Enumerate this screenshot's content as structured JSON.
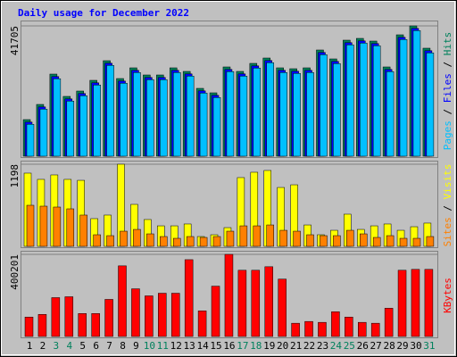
{
  "chart_data": [
    {
      "type": "bar",
      "title": "Daily usage for December 2022",
      "series": [
        {
          "name": "Hits",
          "color": "#00805c",
          "values": [
            11712,
            16568,
            26280,
            19139,
            20853,
            24281,
            30565,
            24852,
            28280,
            25995,
            25995,
            28280,
            27137,
            21710,
            20282,
            28566,
            27137,
            29708,
            31422,
            28280,
            27994,
            28280,
            33993,
            31136,
            37135,
            37706,
            36849,
            28566,
            38849,
            41705,
            34565
          ]
        },
        {
          "name": "Files",
          "color": "#0000ff",
          "values": [
            10912,
            15768,
            25480,
            18339,
            20053,
            23481,
            29765,
            24052,
            27480,
            25195,
            25195,
            27480,
            26337,
            20910,
            19482,
            27766,
            26337,
            28908,
            30622,
            27480,
            27194,
            27480,
            33193,
            30336,
            36335,
            36906,
            36049,
            27766,
            38049,
            40905,
            33765
          ]
        },
        {
          "name": "Pages",
          "color": "#00c0ff",
          "values": [
            10212,
            15068,
            24780,
            17639,
            19353,
            22781,
            29065,
            23352,
            26780,
            24495,
            24495,
            26780,
            25637,
            20210,
            18782,
            27066,
            25637,
            28208,
            29922,
            26780,
            26494,
            26780,
            32493,
            29636,
            35635,
            36206,
            35349,
            27066,
            37349,
            40205,
            33065
          ]
        }
      ],
      "ylim": [
        0,
        41705
      ],
      "yticks": [
        41705
      ]
    },
    {
      "type": "bar",
      "series": [
        {
          "name": "Visits",
          "color": "#ffff00",
          "values": [
            1068,
            977,
            1042,
            977,
            963,
            404,
            456,
            1198,
            612,
            391,
            299,
            299,
            326,
            143,
            169,
            273,
            1003,
            1081,
            1107,
            859,
            898,
            312,
            169,
            234,
            469,
            247,
            299,
            326,
            234,
            286,
            339
          ]
        },
        {
          "name": "Sites",
          "color": "#ff8000",
          "values": [
            599,
            586,
            573,
            547,
            456,
            169,
            156,
            221,
            247,
            182,
            143,
            117,
            143,
            130,
            143,
            221,
            299,
            299,
            312,
            234,
            221,
            169,
            156,
            156,
            234,
            182,
            130,
            156,
            117,
            117,
            143
          ]
        }
      ],
      "ylim": [
        0,
        1198
      ],
      "yticks": [
        1198
      ]
    },
    {
      "type": "bar",
      "categories": [
        "1",
        "2",
        "3",
        "4",
        "5",
        "6",
        "7",
        "8",
        "9",
        "10",
        "11",
        "12",
        "13",
        "14",
        "15",
        "16",
        "17",
        "18",
        "19",
        "20",
        "21",
        "22",
        "23",
        "24",
        "25",
        "26",
        "27",
        "28",
        "29",
        "30",
        "31"
      ],
      "category_colors": [
        "#000000",
        "#000000",
        "#00805c",
        "#00805c",
        "#000000",
        "#000000",
        "#000000",
        "#000000",
        "#000000",
        "#00805c",
        "#00805c",
        "#000000",
        "#000000",
        "#000000",
        "#000000",
        "#000000",
        "#00805c",
        "#00805c",
        "#000000",
        "#000000",
        "#000000",
        "#000000",
        "#000000",
        "#00805c",
        "#00805c",
        "#000000",
        "#000000",
        "#000000",
        "#000000",
        "#000000",
        "#00805c"
      ],
      "series": [
        {
          "name": "KBytes",
          "color": "#ff0000",
          "values": [
            94670,
            107575,
            189332,
            193635,
            111878,
            111878,
            180726,
            344259,
            232369,
            197938,
            210847,
            210847,
            374381,
            124788,
            245277,
            400201,
            322743,
            322743,
            339956,
            279700,
            64545,
            73151,
            68848,
            120485,
            94670,
            68848,
            64545,
            137697,
            322743,
            327046,
            327046
          ]
        }
      ],
      "ylim": [
        0,
        400201
      ],
      "yticks": [
        400201
      ]
    }
  ]
}
